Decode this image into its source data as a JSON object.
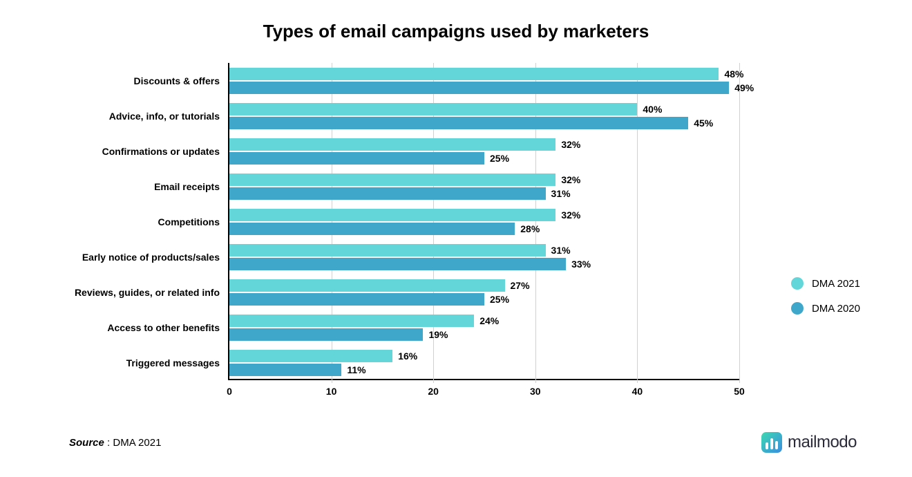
{
  "title": "Types of email campaigns used by marketers",
  "chart": {
    "type": "bar",
    "orientation": "horizontal",
    "xmin": 0,
    "xmax": 50,
    "xtick_step": 10,
    "grid_color": "#d0d0d0",
    "axis_color": "#000000",
    "categories": [
      "Discounts & offers",
      "Advice, info, or tutorials",
      "Confirmations or updates",
      "Email receipts",
      "Competitions",
      "Early notice of products/sales",
      "Reviews, guides, or related info",
      "Access to other benefits",
      "Triggered messages"
    ],
    "series": [
      {
        "name": "DMA 2021",
        "color": "#62d6d9",
        "values": [
          48,
          40,
          32,
          32,
          32,
          31,
          27,
          24,
          16
        ]
      },
      {
        "name": "DMA 2020",
        "color": "#3fa7c9",
        "values": [
          49,
          45,
          25,
          31,
          28,
          33,
          25,
          19,
          11
        ]
      }
    ],
    "value_suffix": "%",
    "label_fontsize": 14,
    "value_fontsize": 14,
    "title_fontsize": 26
  },
  "legend": {
    "items": [
      {
        "label": "DMA 2021",
        "color": "#62d6d9"
      },
      {
        "label": "DMA 2020",
        "color": "#3fa7c9"
      }
    ]
  },
  "source": {
    "label": "Source",
    "text": "DMA 2021"
  },
  "brand": {
    "name": "mailmodo"
  }
}
